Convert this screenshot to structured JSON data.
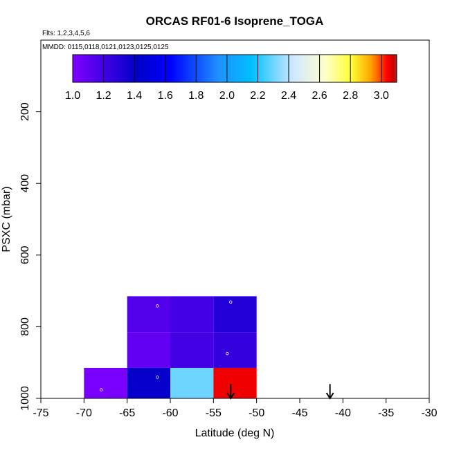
{
  "chart_data": {
    "type": "heatmap",
    "title": "ORCAS RF01-6 Isoprene_TOGA",
    "flights_label": "Flts: 1,2,3,4,5,6",
    "dates_label": "MMDD: 0115,0118,0121,0123,0125,0125",
    "xlabel": "Latitude (deg N)",
    "ylabel": "PSXC (mbar)",
    "xlim": [
      -75,
      -30
    ],
    "ylim": [
      1000,
      0
    ],
    "x_ticks": [
      "-75",
      "-70",
      "-65",
      "-60",
      "-55",
      "-50",
      "-45",
      "-40",
      "-35",
      "-30"
    ],
    "x_tick_values": [
      -75,
      -70,
      -65,
      -60,
      -55,
      -50,
      -45,
      -40,
      -35,
      -30
    ],
    "y_ticks": [
      "200",
      "400",
      "600",
      "800",
      "1000"
    ],
    "y_tick_values": [
      200,
      400,
      600,
      800,
      1000
    ],
    "colorbar": {
      "min": 1.0,
      "max": 3.1,
      "tick_labels": [
        "1.0",
        "1.2",
        "1.4",
        "1.6",
        "1.8",
        "2.0",
        "2.2",
        "2.4",
        "2.6",
        "2.8",
        "3.0"
      ],
      "tick_values": [
        1.0,
        1.2,
        1.4,
        1.6,
        1.8,
        2.0,
        2.2,
        2.4,
        2.6,
        2.8,
        3.0
      ],
      "colors": [
        "#7f00ff",
        "#0000c8",
        "#0000ff",
        "#1e90ff",
        "#00bfff",
        "#cfe8ff",
        "#ffffcc",
        "#ffff33",
        "#ffa500",
        "#ff4500",
        "#ff0000",
        "#cd0000",
        "#a52a2a"
      ],
      "stops": [
        0.0,
        0.2,
        0.3,
        0.45,
        0.55,
        0.68,
        0.78,
        0.86,
        0.92,
        0.95,
        0.97,
        0.99,
        1.0
      ]
    },
    "cells": [
      {
        "lat_min": -65,
        "lat_max": -60,
        "p_min": 715,
        "p_max": 815,
        "value": 1.15
      },
      {
        "lat_min": -60,
        "lat_max": -55,
        "p_min": 715,
        "p_max": 815,
        "value": 1.2
      },
      {
        "lat_min": -55,
        "lat_max": -50,
        "p_min": 715,
        "p_max": 815,
        "value": 1.3
      },
      {
        "lat_min": -65,
        "lat_max": -60,
        "p_min": 815,
        "p_max": 915,
        "value": 1.1
      },
      {
        "lat_min": -60,
        "lat_max": -55,
        "p_min": 815,
        "p_max": 915,
        "value": 1.2
      },
      {
        "lat_min": -55,
        "lat_max": -50,
        "p_min": 815,
        "p_max": 915,
        "value": 1.25
      },
      {
        "lat_min": -70,
        "lat_max": -65,
        "p_min": 915,
        "p_max": 1000,
        "value": 1.02
      },
      {
        "lat_min": -65,
        "lat_max": -60,
        "p_min": 915,
        "p_max": 1000,
        "value": 1.4
      },
      {
        "lat_min": -60,
        "lat_max": -55,
        "p_min": 915,
        "p_max": 1000,
        "value": 2.3
      },
      {
        "lat_min": -55,
        "lat_max": -50,
        "p_min": 915,
        "p_max": 1000,
        "value": 3.05
      }
    ],
    "points": [
      {
        "lat": -61.5,
        "p": 742
      },
      {
        "lat": -53.0,
        "p": 731
      },
      {
        "lat": -53.4,
        "p": 875
      },
      {
        "lat": -61.5,
        "p": 941
      },
      {
        "lat": -68.0,
        "p": 976
      }
    ],
    "arrows": [
      {
        "lat": -53.0,
        "p_top": 960,
        "p_bottom": 1000
      },
      {
        "lat": -41.5,
        "p_top": 960,
        "p_bottom": 1000
      }
    ]
  }
}
